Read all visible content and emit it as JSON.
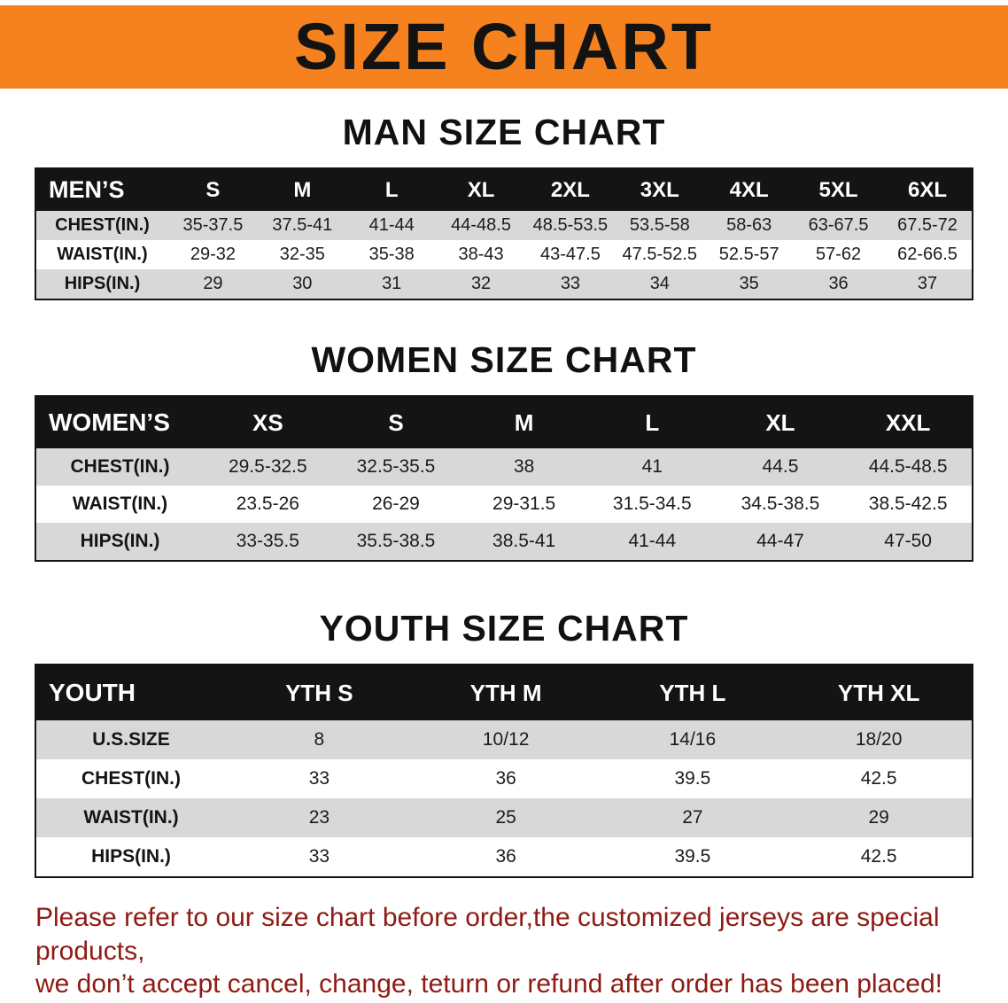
{
  "banner": {
    "title": "SIZE CHART"
  },
  "sections": [
    {
      "title": "MAN SIZE CHART",
      "table": {
        "header": [
          "MEN’S",
          "S",
          "M",
          "L",
          "XL",
          "2XL",
          "3XL",
          "4XL",
          "5XL",
          "6XL"
        ],
        "rows": [
          [
            "CHEST(IN.)",
            "35-37.5",
            "37.5-41",
            "41-44",
            "44-48.5",
            "48.5-53.5",
            "53.5-58",
            "58-63",
            "63-67.5",
            "67.5-72"
          ],
          [
            "WAIST(IN.)",
            "29-32",
            "32-35",
            "35-38",
            "38-43",
            "43-47.5",
            "47.5-52.5",
            "52.5-57",
            "57-62",
            "62-66.5"
          ],
          [
            "HIPS(IN.)",
            "29",
            "30",
            "31",
            "32",
            "33",
            "34",
            "35",
            "36",
            "37"
          ]
        ]
      }
    },
    {
      "title": "WOMEN SIZE CHART",
      "table": {
        "header": [
          "WOMEN’S",
          "XS",
          "S",
          "M",
          "L",
          "XL",
          "XXL"
        ],
        "rows": [
          [
            "CHEST(IN.)",
            "29.5-32.5",
            "32.5-35.5",
            "38",
            "41",
            "44.5",
            "44.5-48.5"
          ],
          [
            "WAIST(IN.)",
            "23.5-26",
            "26-29",
            "29-31.5",
            "31.5-34.5",
            "34.5-38.5",
            "38.5-42.5"
          ],
          [
            "HIPS(IN.)",
            "33-35.5",
            "35.5-38.5",
            "38.5-41",
            "41-44",
            "44-47",
            "47-50"
          ]
        ]
      }
    },
    {
      "title": "YOUTH SIZE CHART",
      "table": {
        "header": [
          "YOUTH",
          "YTH S",
          "YTH M",
          "YTH L",
          "YTH XL"
        ],
        "rows": [
          [
            "U.S.SIZE",
            "8",
            "10/12",
            "14/16",
            "18/20"
          ],
          [
            "CHEST(IN.)",
            "33",
            "36",
            "39.5",
            "42.5"
          ],
          [
            "WAIST(IN.)",
            "23",
            "25",
            "27",
            "29"
          ],
          [
            "HIPS(IN.)",
            "33",
            "36",
            "39.5",
            "42.5"
          ]
        ]
      }
    }
  ],
  "footer": {
    "line1": "Please refer to our size chart before order,the customized jerseys are special products,",
    "line2": "we don’t accept cancel, change, teturn or refund after order has been placed!"
  },
  "colors": {
    "banner-orange": "#f5821e",
    "table-black": "#141414",
    "stripe-gray": "#d8d8d8",
    "notice-red": "#8e1b14"
  }
}
